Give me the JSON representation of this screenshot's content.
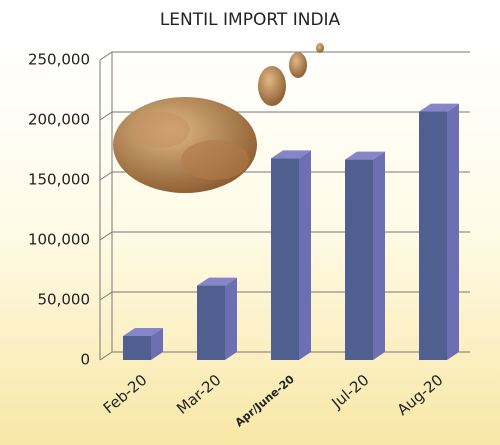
{
  "chart_data": {
    "type": "bar3d",
    "title": "LENTIL IMPORT INDIA",
    "categories": [
      "Feb-20",
      "Mar-20",
      "Apr/June-20",
      "Jul-20",
      "Aug-20"
    ],
    "values": [
      20000,
      62000,
      168000,
      167000,
      207000
    ],
    "color": "#4f5f8f",
    "ylim": [
      0,
      250000
    ],
    "yticks": [
      0,
      {
        "value": 50000,
        "label": "50,000"
      },
      {
        "value": 100000,
        "label": "100,000"
      },
      {
        "value": 150000,
        "label": "150,000"
      },
      {
        "value": 200000,
        "label": "200,000"
      },
      {
        "value": 250000,
        "label": "250,000"
      }
    ],
    "grid": true
  }
}
